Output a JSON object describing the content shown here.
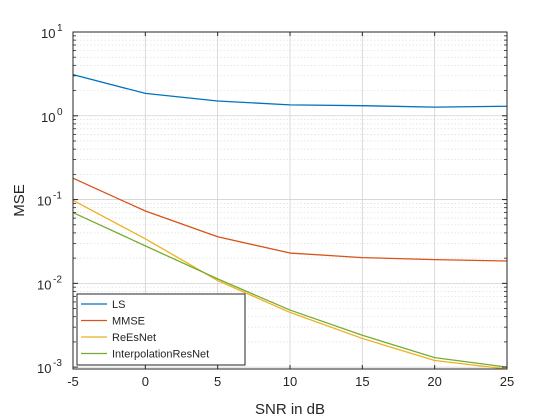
{
  "chart_data": {
    "type": "line",
    "title": "",
    "xlabel": "SNR in dB",
    "ylabel": "MSE",
    "x": [
      -5,
      0,
      5,
      10,
      15,
      20,
      25
    ],
    "xlim": [
      -5,
      25
    ],
    "ylim": [
      0.00095,
      10
    ],
    "yscale": "log",
    "x_ticks": [
      "-5",
      "0",
      "5",
      "10",
      "15",
      "20",
      "25"
    ],
    "y_ticks": [
      {
        "base": "10",
        "exp": "1"
      },
      {
        "base": "10",
        "exp": "0"
      },
      {
        "base": "10",
        "exp": "-1"
      },
      {
        "base": "10",
        "exp": "-2"
      },
      {
        "base": "10",
        "exp": "-3"
      }
    ],
    "grid": true,
    "legend_position": "bottom-left",
    "series": [
      {
        "name": "LS",
        "color": "#0072BD",
        "values": [
          3.1,
          1.85,
          1.5,
          1.35,
          1.32,
          1.27,
          1.3
        ]
      },
      {
        "name": "MMSE",
        "color": "#D95319",
        "values": [
          0.18,
          0.073,
          0.036,
          0.023,
          0.0203,
          0.0192,
          0.0185
        ]
      },
      {
        "name": "ReEsNet",
        "color": "#EDB120",
        "values": [
          0.098,
          0.034,
          0.0108,
          0.0045,
          0.0022,
          0.0012,
          0.00095
        ]
      },
      {
        "name": "InterpolationResNet",
        "color": "#77AC30",
        "values": [
          0.07,
          0.028,
          0.0113,
          0.0048,
          0.0024,
          0.0013,
          0.001
        ]
      }
    ]
  }
}
